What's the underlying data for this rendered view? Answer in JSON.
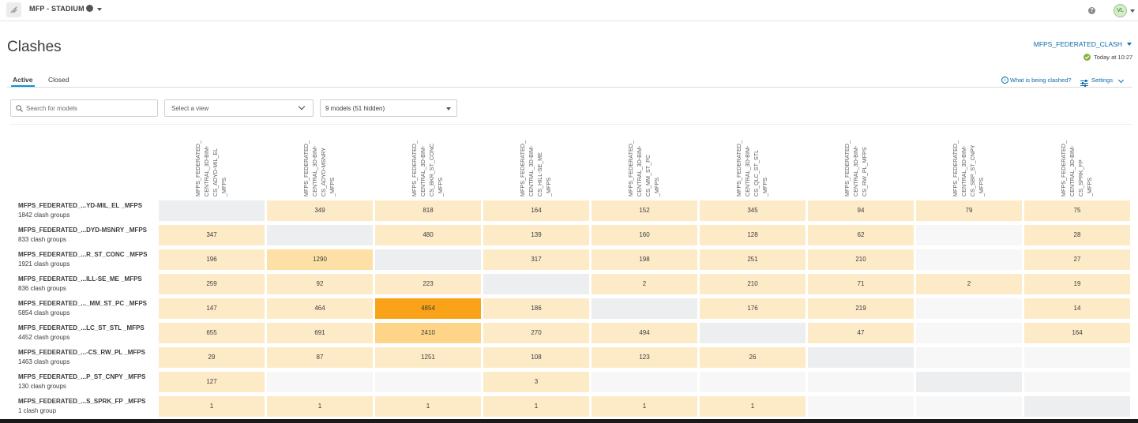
{
  "topbar": {
    "project_name": "MFP - STADIUM",
    "avatar_initials": "VL"
  },
  "header": {
    "title": "Clashes",
    "model_link": "MFPS_FEDERATED_CLASH",
    "timestamp": "Today at 10:27"
  },
  "tabs": [
    {
      "label": "Active",
      "active": true
    },
    {
      "label": "Closed",
      "active": false
    }
  ],
  "actions": {
    "what_clashed": "What is being clashed?",
    "settings": "Settings"
  },
  "filters": {
    "search_placeholder": "Search for models",
    "view_placeholder": "Select a view",
    "models_label": "9 models (51 hidden)"
  },
  "columns": [
    "MFPS_FEDERATED_\nCENTRAL_3D-BIM-\nCS_ADYD-MIL_EL\n_MFPS",
    "MFPS_FEDERATED_\nCENTRAL_3D-BIM-\nCS_ADYD-MSNRY\n_MFPS",
    "MFPS_FEDERATED_\nCENTRAL_3D-BIM-\nCS_BKR_ST_CONC\n_MFPS",
    "MFPS_FEDERATED_\nCENTRAL_3D-BIM-\nCS_HILL-SE_ME\n_MFPS",
    "MFPS_FEDERATED_\nCENTRAL_3D-BIM-\nCS_MM_ST_PC\n_MFPS",
    "MFPS_FEDERATED_\nCENTRAL_3D-BIM-\nCS_QLC_ST_STL\n_MFPS",
    "MFPS_FEDERATED_\nCENTRAL_3D-BIM-\nCS_RW_PL_MFPS",
    "MFPS_FEDERATED_\nCENTRAL_3D-BIM-\nCS_SBP_ST_CNPY\n_MFPS",
    "MFPS_FEDERATED_\nCENTRAL_3D-BIM-\nCS_SPRK_FP\n_MFPS"
  ],
  "rows": [
    {
      "name": "MFPS_FEDERATED_...YD-MIL_EL _MFPS",
      "count": "1842 clash groups",
      "cells": [
        "",
        "349",
        "818",
        "164",
        "152",
        "345",
        "94",
        "79",
        "75"
      ]
    },
    {
      "name": "MFPS_FEDERATED_...DYD-MSNRY _MFPS",
      "count": "833 clash groups",
      "cells": [
        "347",
        "",
        "480",
        "139",
        "160",
        "128",
        "62",
        "",
        "28"
      ]
    },
    {
      "name": "MFPS_FEDERATED_...R_ST_CONC _MFPS",
      "count": "1921 clash groups",
      "cells": [
        "196",
        "1290",
        "",
        "317",
        "198",
        "251",
        "210",
        "",
        "27"
      ]
    },
    {
      "name": "MFPS_FEDERATED_...ILL-SE_ME _MFPS",
      "count": "836 clash groups",
      "cells": [
        "259",
        "92",
        "223",
        "",
        "2",
        "210",
        "71",
        "2",
        "19"
      ]
    },
    {
      "name": "MFPS_FEDERATED_..._MM_ST_PC _MFPS",
      "count": "5854 clash groups",
      "cells": [
        "147",
        "464",
        "4854",
        "186",
        "",
        "176",
        "219",
        "",
        "14"
      ]
    },
    {
      "name": "MFPS_FEDERATED_...LC_ST_STL _MFPS",
      "count": "4452 clash groups",
      "cells": [
        "655",
        "691",
        "2410",
        "270",
        "494",
        "",
        "47",
        "",
        "164"
      ]
    },
    {
      "name": "MFPS_FEDERATED_...-CS_RW_PL _MFPS",
      "count": "1463 clash groups",
      "cells": [
        "29",
        "87",
        "1251",
        "108",
        "123",
        "26",
        "",
        "",
        ""
      ]
    },
    {
      "name": "MFPS_FEDERATED_...P_ST_CNPY _MFPS",
      "count": "130 clash groups",
      "cells": [
        "127",
        "",
        "",
        "3",
        "",
        "",
        "",
        "",
        ""
      ]
    },
    {
      "name": "MFPS_FEDERATED_...S_SPRK_FP _MFPS",
      "count": "1 clash group",
      "cells": [
        "1",
        "1",
        "1",
        "1",
        "1",
        "1",
        "",
        "",
        ""
      ]
    }
  ],
  "cell_states": [
    [
      "diag",
      "light",
      "light",
      "light",
      "light",
      "light",
      "light",
      "light",
      "light"
    ],
    [
      "light",
      "diag",
      "light",
      "light",
      "light",
      "light",
      "light",
      "blank",
      "light"
    ],
    [
      "light",
      "medium",
      "diag",
      "light",
      "light",
      "light",
      "light",
      "blank",
      "light"
    ],
    [
      "light",
      "light",
      "light",
      "diag",
      "light",
      "light",
      "light",
      "light",
      "light"
    ],
    [
      "light",
      "light",
      "dark",
      "light",
      "diag",
      "light",
      "light",
      "blank",
      "light"
    ],
    [
      "light",
      "light",
      "strong",
      "light",
      "light",
      "diag",
      "light",
      "blank",
      "light"
    ],
    [
      "light",
      "light",
      "light",
      "light",
      "light",
      "light",
      "diag",
      "blank",
      "blank"
    ],
    [
      "light",
      "blank",
      "blank",
      "light",
      "blank",
      "blank",
      "blank",
      "diag",
      "blank"
    ],
    [
      "light",
      "light",
      "light",
      "light",
      "light",
      "light",
      "blank",
      "blank",
      "diag"
    ]
  ],
  "colors": {
    "accent": "#0696d7",
    "link": "#0e6aa8",
    "cell_light": "#fdebc8",
    "cell_medium": "#fde0a6",
    "cell_strong": "#fdd488",
    "cell_dark": "#fba318",
    "cell_diag": "#eceef0",
    "cell_blank": "#f7f7f7"
  }
}
